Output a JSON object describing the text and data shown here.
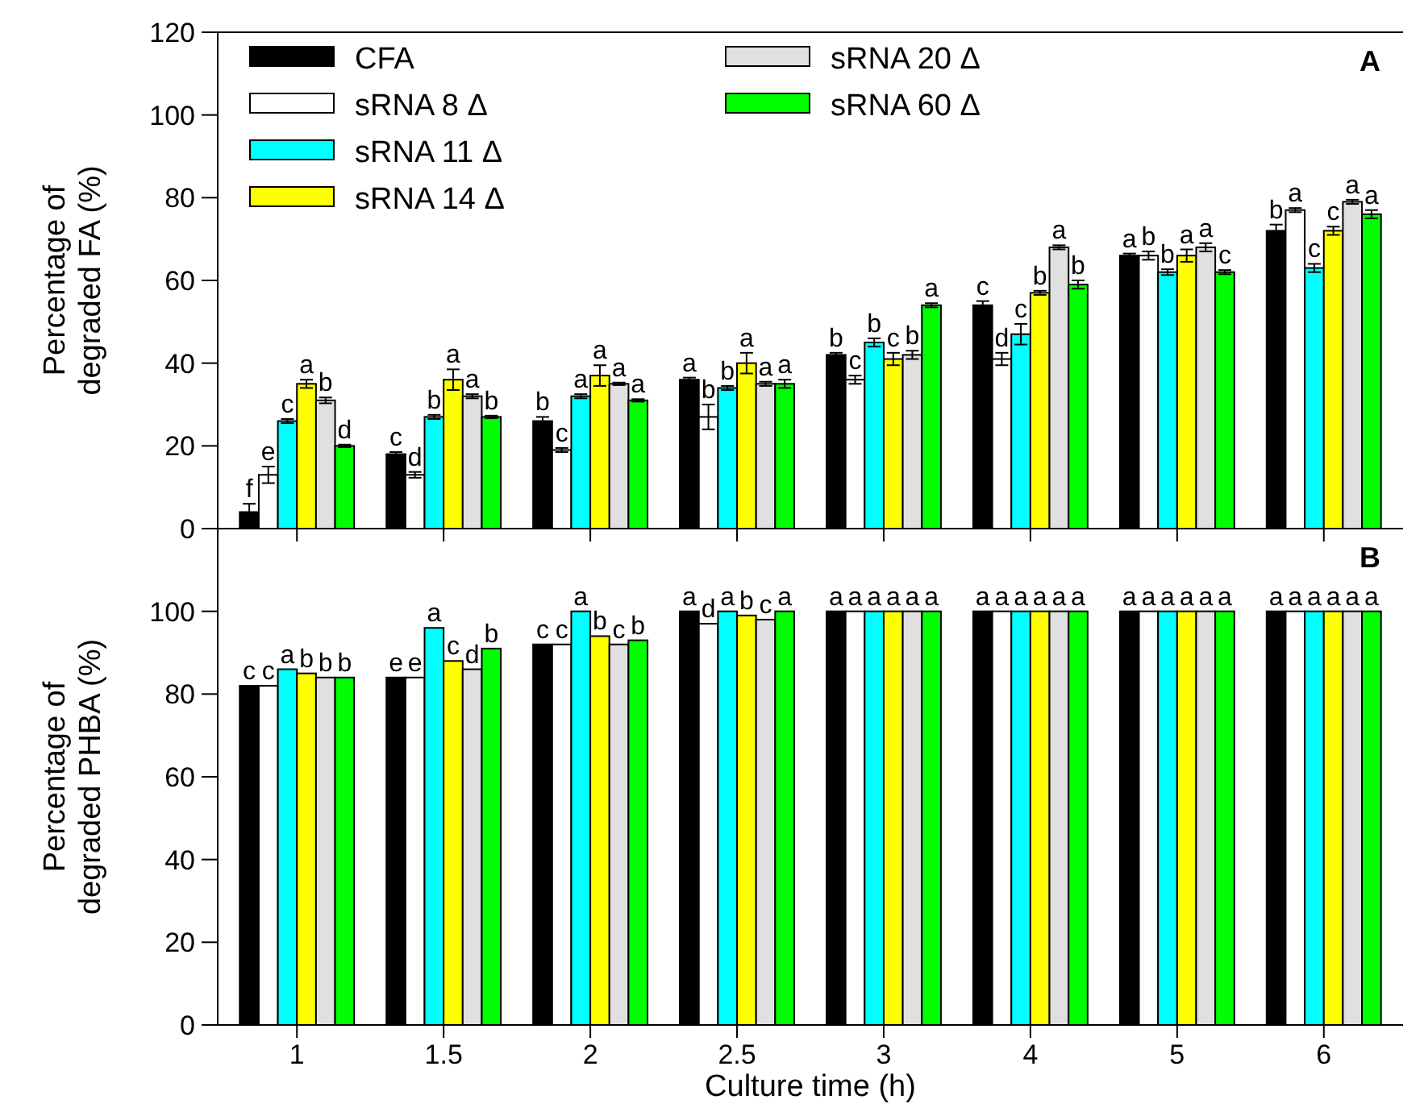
{
  "chart_data": [
    {
      "type": "bar",
      "categories": [
        "1",
        "1.5",
        "2",
        "2.5",
        "3",
        "4",
        "5",
        "6"
      ],
      "ylabel": "Percentage of\ndegraded  FA (%)",
      "ylim": [
        0,
        120
      ],
      "yticks": [
        0,
        20,
        40,
        60,
        80,
        100,
        120
      ],
      "tick_labels": "y",
      "legend": "top left",
      "annotations": [
        "A"
      ],
      "series": [
        {
          "name": "CFA",
          "color": "#000000",
          "values": [
            4,
            18,
            26,
            36,
            42,
            54,
            66,
            72
          ],
          "errors": [
            2,
            0.5,
            1,
            0.5,
            0.5,
            1,
            0.5,
            1.5
          ],
          "value_labels": [
            "f",
            "c",
            "b",
            "a",
            "b",
            "c",
            "a",
            "b"
          ]
        },
        {
          "name": "sRNA 8 Δ",
          "color": "#ffffff",
          "values": [
            13,
            13,
            19,
            27,
            36,
            41,
            66,
            77
          ],
          "errors": [
            2,
            0.7,
            0.5,
            3,
            1,
            1.5,
            1,
            0.5
          ],
          "value_labels": [
            "e",
            "d",
            "c",
            "b",
            "c",
            "d",
            "b",
            "a"
          ]
        },
        {
          "name": "sRNA 11 Δ",
          "color": "#00ffff",
          "values": [
            26,
            27,
            32,
            34,
            45,
            47,
            62,
            63
          ],
          "errors": [
            0.5,
            0.5,
            0.5,
            0.5,
            1,
            2.5,
            0.7,
            1
          ],
          "value_labels": [
            "c",
            "b",
            "a",
            "b",
            "b",
            "c",
            "b",
            "c"
          ]
        },
        {
          "name": "sRNA 14 Δ",
          "color": "#ffff00",
          "values": [
            35,
            36,
            37,
            40,
            41,
            57,
            66,
            72
          ],
          "errors": [
            1,
            2.5,
            2.5,
            2.5,
            1.5,
            0.5,
            1.5,
            1
          ],
          "value_labels": [
            "a",
            "a",
            "a",
            "a",
            "c",
            "b",
            "a",
            "c"
          ]
        },
        {
          "name": "sRNA 20 Δ",
          "color": "#e0e0e0",
          "values": [
            31,
            32,
            35,
            35,
            42,
            68,
            68,
            79
          ],
          "errors": [
            0.7,
            0.5,
            0.3,
            0.5,
            1,
            0.5,
            1,
            0.5
          ],
          "value_labels": [
            "b",
            "a",
            "a",
            "a",
            "b",
            "a",
            "a",
            "a"
          ]
        },
        {
          "name": "sRNA 60 Δ",
          "color": "#00ff00",
          "values": [
            20,
            27,
            31,
            35,
            54,
            59,
            62,
            76
          ],
          "errors": [
            0.3,
            0.3,
            0.3,
            1,
            0.5,
            1,
            0.5,
            1
          ],
          "value_labels": [
            "d",
            "b",
            "a",
            "a",
            "a",
            "b",
            "c",
            "a"
          ]
        }
      ]
    },
    {
      "type": "bar",
      "categories": [
        "1",
        "1.5",
        "2",
        "2.5",
        "3",
        "4",
        "5",
        "6"
      ],
      "xlabel": "Culture time (h)",
      "ylabel": "Percentage of\ndegraded  PHBA (%)",
      "ylim": [
        0,
        120
      ],
      "yticks": [
        0,
        20,
        40,
        60,
        80,
        100
      ],
      "annotations": [
        "B"
      ],
      "series": [
        {
          "color": "#000000",
          "values": [
            82,
            84,
            92,
            100,
            100,
            100,
            100,
            100
          ],
          "value_labels": [
            "c",
            "e",
            "c",
            "a",
            "a",
            "a",
            "a",
            "a"
          ]
        },
        {
          "color": "#ffffff",
          "values": [
            82,
            84,
            92,
            97,
            100,
            100,
            100,
            100
          ],
          "value_labels": [
            "c",
            "e",
            "c",
            "d",
            "a",
            "a",
            "a",
            "a"
          ]
        },
        {
          "color": "#00ffff",
          "values": [
            86,
            96,
            100,
            100,
            100,
            100,
            100,
            100
          ],
          "value_labels": [
            "a",
            "a",
            "a",
            "a",
            "a",
            "a",
            "a",
            "a"
          ]
        },
        {
          "color": "#ffff00",
          "values": [
            85,
            88,
            94,
            99,
            100,
            100,
            100,
            100
          ],
          "value_labels": [
            "b",
            "c",
            "b",
            "b",
            "a",
            "a",
            "a",
            "a"
          ]
        },
        {
          "color": "#e0e0e0",
          "values": [
            84,
            86,
            92,
            98,
            100,
            100,
            100,
            100
          ],
          "value_labels": [
            "b",
            "d",
            "c",
            "c",
            "a",
            "a",
            "a",
            "a"
          ]
        },
        {
          "color": "#00ff00",
          "values": [
            84,
            91,
            93,
            100,
            100,
            100,
            100,
            100
          ],
          "value_labels": [
            "b",
            "b",
            "b",
            "a",
            "a",
            "a",
            "a",
            "a"
          ]
        }
      ]
    }
  ]
}
